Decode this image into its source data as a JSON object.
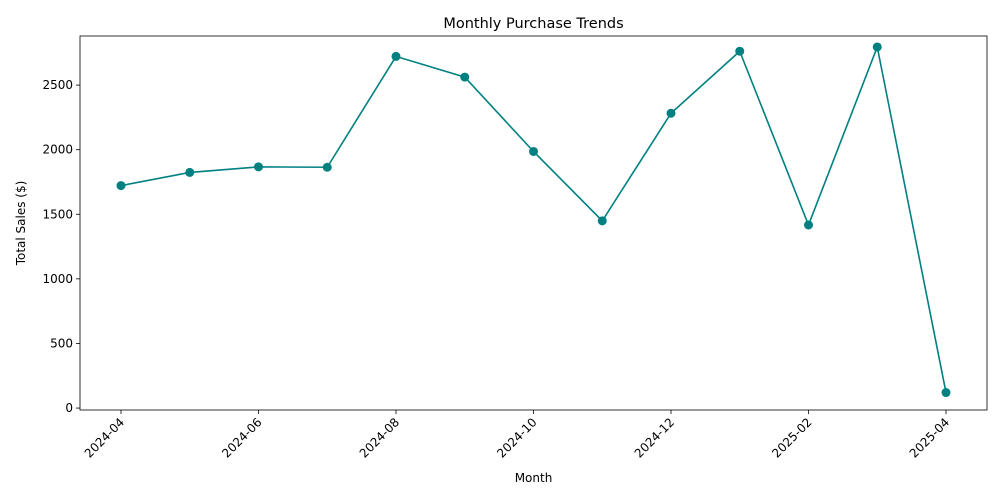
{
  "chart_data": {
    "type": "line",
    "title": "Monthly Purchase Trends",
    "xlabel": "Month",
    "ylabel": "Total Sales ($)",
    "x": [
      "2024-04",
      "2024-05",
      "2024-06",
      "2024-07",
      "2024-08",
      "2024-09",
      "2024-10",
      "2024-11",
      "2024-12",
      "2025-01",
      "2025-02",
      "2025-03",
      "2025-04"
    ],
    "series": [
      {
        "values": [
          1722,
          1824,
          1867,
          1864,
          2722,
          2562,
          1986,
          1449,
          2282,
          2762,
          1417,
          2795,
          120
        ]
      }
    ],
    "x_tick_labels": [
      "2024-04",
      "2024-06",
      "2024-08",
      "2024-10",
      "2024-12",
      "2025-02",
      "2025-04"
    ],
    "y_ticks": [
      0,
      500,
      1000,
      1500,
      2000,
      2500
    ],
    "ylim": [
      -15,
      2880
    ],
    "grid": false,
    "color": "#008080"
  }
}
